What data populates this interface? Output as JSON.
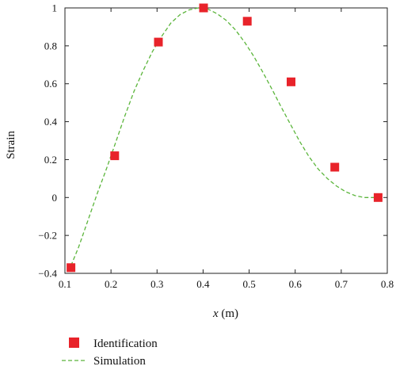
{
  "chart_data": {
    "type": "scatter",
    "xlabel_var": "x",
    "xlabel_unit": " (m)",
    "ylabel": "Strain",
    "xlim": [
      0.1,
      0.8
    ],
    "ylim": [
      -0.4,
      1.0
    ],
    "xticks": [
      0.1,
      0.2,
      0.3,
      0.4,
      0.5,
      0.6,
      0.7,
      0.8
    ],
    "yticks": [
      -0.4,
      -0.2,
      0,
      0.2,
      0.4,
      0.6,
      0.8,
      1.0
    ],
    "xtick_labels": [
      "0.1",
      "0.2",
      "0.3",
      "0.4",
      "0.5",
      "0.6",
      "0.7",
      "0.8"
    ],
    "ytick_labels": [
      "−0.4",
      "−0.2",
      "0",
      "0.2",
      "0.4",
      "0.6",
      "0.8",
      "1"
    ],
    "grid": false,
    "legend_position": "bottom-left, below plot",
    "series": [
      {
        "name": "Identification",
        "kind": "markers",
        "marker": "square",
        "color": "#e8232a",
        "x": [
          0.113,
          0.208,
          0.303,
          0.401,
          0.496,
          0.591,
          0.686,
          0.78
        ],
        "y": [
          -0.37,
          0.22,
          0.82,
          1.0,
          0.93,
          0.61,
          0.16,
          0.0
        ]
      },
      {
        "name": "Simulation",
        "kind": "dashed-line",
        "color": "#5bb53b",
        "x": [
          0.113,
          0.13,
          0.15,
          0.17,
          0.19,
          0.21,
          0.23,
          0.25,
          0.27,
          0.29,
          0.31,
          0.33,
          0.35,
          0.37,
          0.39,
          0.41,
          0.43,
          0.45,
          0.47,
          0.49,
          0.51,
          0.53,
          0.55,
          0.57,
          0.59,
          0.61,
          0.63,
          0.65,
          0.67,
          0.69,
          0.71,
          0.73,
          0.75,
          0.77,
          0.78
        ],
        "y": [
          -0.36,
          -0.26,
          -0.12,
          0.02,
          0.15,
          0.29,
          0.43,
          0.56,
          0.67,
          0.77,
          0.85,
          0.92,
          0.965,
          0.99,
          1.0,
          0.995,
          0.97,
          0.935,
          0.885,
          0.82,
          0.745,
          0.66,
          0.57,
          0.475,
          0.385,
          0.295,
          0.215,
          0.15,
          0.1,
          0.06,
          0.03,
          0.01,
          0.0,
          0.0,
          0.0
        ]
      }
    ]
  }
}
